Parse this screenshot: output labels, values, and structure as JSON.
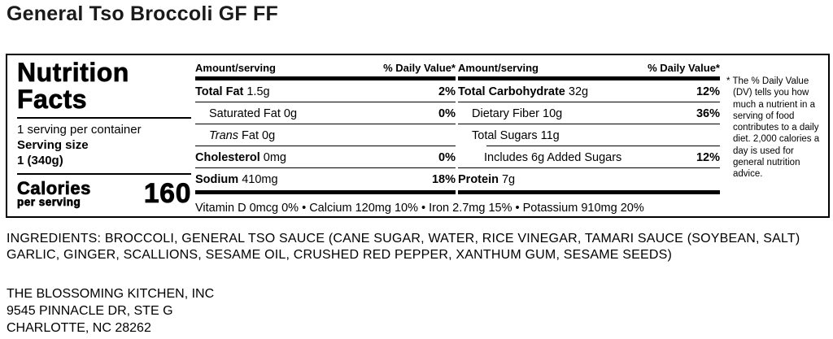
{
  "page": {
    "title": "General Tso Broccoli GF FF"
  },
  "nutrition_label": {
    "heading": "Nutrition Facts",
    "servings_per_container": "1 serving per container",
    "serving_size_label": "Serving size",
    "serving_size_value": "1 (340g)",
    "calories_label": "Calories",
    "calories_unit": "per serving",
    "calories_value": "160",
    "columns": [
      {
        "amount_header": "Amount/serving",
        "dv_header": "% Daily Value*",
        "rows": [
          {
            "strong": "Total Fat",
            "rest": " 1.5g",
            "dv": "2%"
          },
          {
            "strong": "",
            "rest": "Saturated Fat 0g",
            "dv": "0%"
          },
          {
            "italic": "Trans",
            "rest": " Fat 0g",
            "dv": ""
          },
          {
            "strong": "Cholesterol",
            "rest": " 0mg",
            "dv": "0%"
          },
          {
            "strong": "Sodium",
            "rest": " 410mg",
            "dv": "18%"
          }
        ]
      },
      {
        "amount_header": "Amount/serving",
        "dv_header": "% Daily Value*",
        "rows": [
          {
            "strong": "Total Carbohydrate",
            "rest": " 32g",
            "dv": "12%"
          },
          {
            "strong": "",
            "rest": "Dietary Fiber 10g",
            "dv": "36%"
          },
          {
            "strong": "",
            "rest": "Total Sugars 11g",
            "dv": ""
          },
          {
            "strong": "",
            "rest": "Includes 6g Added Sugars",
            "dv": "12%"
          },
          {
            "strong": "Protein",
            "rest": " 7g",
            "dv": ""
          }
        ]
      }
    ],
    "micronutrients": "Vitamin D 0mcg 0% • Calcium 120mg 10% • Iron 2.7mg 15% • Potassium 910mg 20%",
    "footnote": "* The % Daily Value (DV) tells you how much a nutrient in a serving of food contributes to a daily diet. 2,000 calories a day is used for general nutrition advice."
  },
  "ingredients": {
    "line1": "INGREDIENTS: BROCCOLI, GENERAL TSO SAUCE (CANE SUGAR, WATER, RICE VINEGAR, TAMARI SAUCE (SOYBEAN, SALT)",
    "line2": "GARLIC, GINGER, SCALLIONS, SESAME OIL, CRUSHED RED PEPPER, XANTHUM GUM, SESAME SEEDS)"
  },
  "manufacturer": {
    "name": "THE BLOSSOMING KITCHEN, INC",
    "street": "9545 PINNACLE DR, STE G",
    "city": "CHARLOTTE, NC 28262"
  },
  "colors": {
    "text": "#000000",
    "title": "#1a1a1a",
    "background": "#ffffff"
  }
}
